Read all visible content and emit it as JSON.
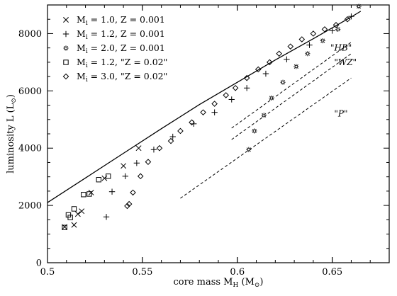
{
  "chart_data": {
    "type": "scatter",
    "xlabel": "core mass  M_H  (M_⊙)",
    "ylabel": "luminosity  L  (L_⊙)",
    "xlim": [
      0.5,
      0.68
    ],
    "ylim": [
      0,
      9000
    ],
    "x_ticks": [
      {
        "value": 0.5,
        "label": "0.5"
      },
      {
        "value": 0.55,
        "label": "0.55"
      },
      {
        "value": 0.6,
        "label": "0.6"
      },
      {
        "value": 0.65,
        "label": "0.65"
      }
    ],
    "y_ticks": [
      {
        "value": 0,
        "label": "0"
      },
      {
        "value": 2000,
        "label": "2000"
      },
      {
        "value": 4000,
        "label": "4000"
      },
      {
        "value": 6000,
        "label": "6000"
      },
      {
        "value": 8000,
        "label": "8000"
      }
    ],
    "series": [
      {
        "name": "M_i = 1.0,  Z = 0.001",
        "marker": "x",
        "points": [
          [
            0.509,
            1250
          ],
          [
            0.514,
            1320
          ],
          [
            0.516,
            1700
          ],
          [
            0.518,
            1800
          ],
          [
            0.523,
            2450
          ],
          [
            0.53,
            2950
          ],
          [
            0.54,
            3380
          ],
          [
            0.548,
            4000
          ]
        ]
      },
      {
        "name": "M_i = 1.2,  Z = 0.001",
        "marker": "plus",
        "points": [
          [
            0.531,
            1600
          ],
          [
            0.534,
            2480
          ],
          [
            0.541,
            3020
          ],
          [
            0.547,
            3480
          ],
          [
            0.556,
            3950
          ],
          [
            0.566,
            4400
          ],
          [
            0.577,
            4850
          ],
          [
            0.588,
            5250
          ],
          [
            0.597,
            5700
          ],
          [
            0.605,
            6100
          ],
          [
            0.615,
            6600
          ],
          [
            0.626,
            7100
          ],
          [
            0.638,
            7600
          ],
          [
            0.65,
            8100
          ],
          [
            0.66,
            8600
          ]
        ]
      },
      {
        "name": "M_i = 2.0,  Z = 0.001",
        "marker": "star",
        "points": [
          [
            0.606,
            3950
          ],
          [
            0.609,
            4600
          ],
          [
            0.614,
            5150
          ],
          [
            0.618,
            5750
          ],
          [
            0.624,
            6300
          ],
          [
            0.631,
            6850
          ],
          [
            0.637,
            7300
          ],
          [
            0.645,
            7750
          ],
          [
            0.653,
            8150
          ],
          [
            0.664,
            8950
          ]
        ]
      },
      {
        "name": "M_i = 1.2,  \"Z = 0.02\"",
        "marker": "square",
        "points": [
          [
            0.509,
            1230
          ],
          [
            0.511,
            1670
          ],
          [
            0.512,
            1580
          ],
          [
            0.514,
            1880
          ],
          [
            0.519,
            2380
          ],
          [
            0.522,
            2400
          ],
          [
            0.527,
            2900
          ],
          [
            0.532,
            3020
          ]
        ]
      },
      {
        "name": "M_i = 3.0,  \"Z = 0.02\"",
        "marker": "diamond",
        "points": [
          [
            0.542,
            1980
          ],
          [
            0.543,
            2050
          ],
          [
            0.545,
            2450
          ],
          [
            0.549,
            3020
          ],
          [
            0.553,
            3520
          ],
          [
            0.559,
            4000
          ],
          [
            0.565,
            4250
          ],
          [
            0.57,
            4600
          ],
          [
            0.576,
            4900
          ],
          [
            0.582,
            5250
          ],
          [
            0.588,
            5550
          ],
          [
            0.594,
            5850
          ],
          [
            0.599,
            6100
          ],
          [
            0.605,
            6450
          ],
          [
            0.611,
            6750
          ],
          [
            0.617,
            7000
          ],
          [
            0.622,
            7300
          ],
          [
            0.628,
            7550
          ],
          [
            0.634,
            7800
          ],
          [
            0.64,
            8000
          ],
          [
            0.646,
            8150
          ],
          [
            0.652,
            8300
          ],
          [
            0.658,
            8500
          ]
        ]
      }
    ],
    "curves": [
      {
        "style": "solid",
        "points": [
          [
            0.5,
            2100
          ],
          [
            0.52,
            2960
          ],
          [
            0.54,
            3820
          ],
          [
            0.56,
            4680
          ],
          [
            0.58,
            5520
          ],
          [
            0.6,
            6300
          ],
          [
            0.62,
            7080
          ],
          [
            0.64,
            7820
          ],
          [
            0.66,
            8580
          ],
          [
            0.665,
            8780
          ]
        ]
      },
      {
        "style": "dashed",
        "label": "\"HB\"",
        "points": [
          [
            0.597,
            4700
          ],
          [
            0.66,
            7700
          ]
        ]
      },
      {
        "style": "dashed",
        "label": "\"WZ\"",
        "points": [
          [
            0.597,
            4300
          ],
          [
            0.66,
            7300
          ]
        ]
      },
      {
        "style": "dashed",
        "label": "\"P\"",
        "points": [
          [
            0.57,
            2250
          ],
          [
            0.66,
            6450
          ]
        ]
      }
    ],
    "annotations": [
      {
        "text": "\"HB\"",
        "x": 0.649,
        "y": 7400
      },
      {
        "text": "\"WZ\"",
        "x": 0.651,
        "y": 6900
      },
      {
        "text": "\"P\"",
        "x": 0.651,
        "y": 5100
      }
    ],
    "legend_position": "top-left",
    "grid": false
  }
}
